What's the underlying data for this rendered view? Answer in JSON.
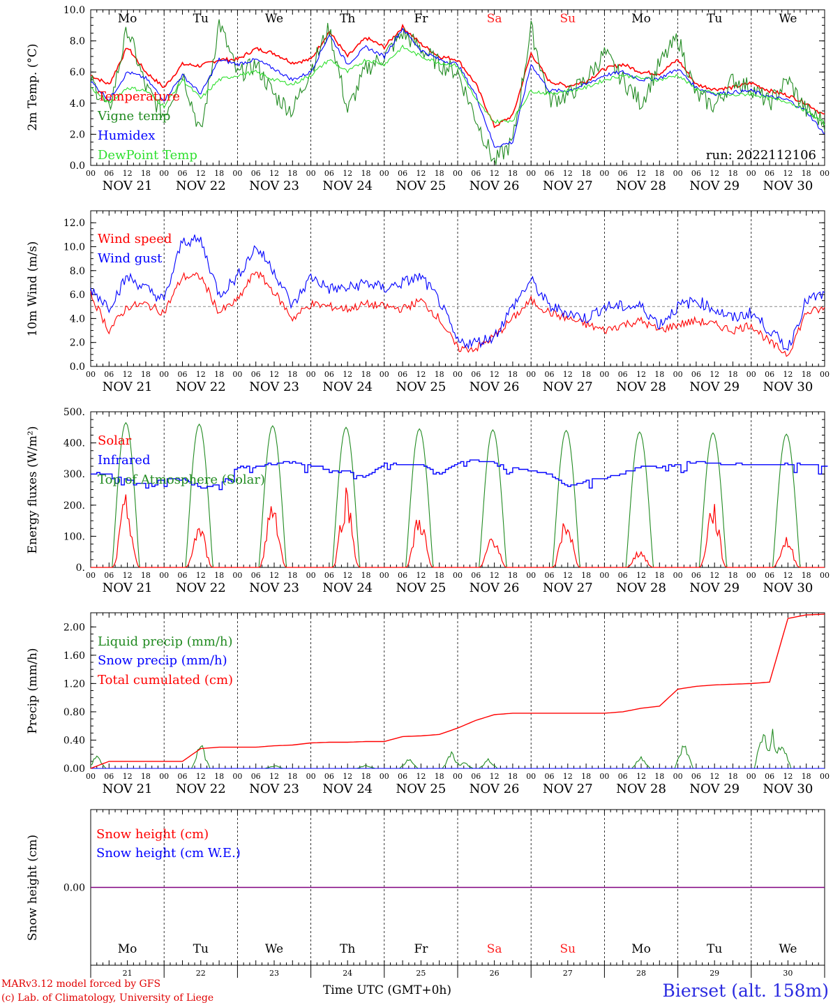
{
  "run_label": "run: 2022112106",
  "time_axis": {
    "hour_labels": [
      "00",
      "06",
      "12",
      "18"
    ],
    "end_hour_label": "00",
    "date_labels": [
      "NOV 21",
      "NOV 22",
      "NOV 23",
      "NOV 24",
      "NOV 25",
      "NOV 26",
      "NOV 27",
      "NOV 28",
      "NOV 29",
      "NOV 30"
    ],
    "weekday_labels": [
      "Mo",
      "Tu",
      "We",
      "Th",
      "Fr",
      "Sa",
      "Su",
      "Mo",
      "Tu",
      "We"
    ],
    "weekend_color": "#ff2020",
    "weekday_color": "#000000",
    "day_numbers": [
      "21",
      "22",
      "23",
      "24",
      "25",
      "26",
      "27",
      "28",
      "29",
      "30"
    ],
    "xlabel": "Time UTC (GMT+0h)"
  },
  "footer": {
    "credit_line1": "MARv3.12 model forced by GFS",
    "credit_line2": "(c) Lab. of Climatology, University of Liege",
    "station": "Bierset (alt. 158m)"
  },
  "chart_data": [
    {
      "type": "line",
      "ylabel": "2m Temp. (°C)",
      "ylim": [
        0,
        10
      ],
      "yticks": [
        "0.0",
        "2.0",
        "4.0",
        "6.0",
        "8.0",
        "10.0"
      ],
      "hours": [
        0,
        6,
        12,
        18,
        24,
        30,
        36,
        42,
        48,
        54,
        60,
        66,
        72,
        78,
        84,
        90,
        96,
        102,
        108,
        114,
        120,
        126,
        132,
        138,
        144,
        150,
        156,
        162,
        168,
        174,
        180,
        186,
        192,
        198,
        204,
        210,
        216,
        222,
        228,
        234,
        240
      ],
      "series": [
        {
          "name": "Temperature",
          "color": "#ff0000",
          "values": [
            5.8,
            5.2,
            7.6,
            6.0,
            5.0,
            6.5,
            6.4,
            6.8,
            6.8,
            7.5,
            7.2,
            6.6,
            6.8,
            8.6,
            7.0,
            8.2,
            7.6,
            8.9,
            7.8,
            7.0,
            6.8,
            5.2,
            2.5,
            3.2,
            7.2,
            5.4,
            5.1,
            5.4,
            6.2,
            6.5,
            6.0,
            5.9,
            6.8,
            5.2,
            4.9,
            5.0,
            5.3,
            4.8,
            4.5,
            4.0,
            3.2
          ]
        },
        {
          "name": "Vigne temp",
          "color": "#228b22",
          "values": [
            5.5,
            3.5,
            8.8,
            5.0,
            3.2,
            6.0,
            2.0,
            9.2,
            5.8,
            6.5,
            4.5,
            3.5,
            6.2,
            8.8,
            3.5,
            6.2,
            7.0,
            8.5,
            7.5,
            6.5,
            6.0,
            3.0,
            0.2,
            1.5,
            8.8,
            4.2,
            4.5,
            5.5,
            7.2,
            5.5,
            4.0,
            6.5,
            8.2,
            4.5,
            3.8,
            5.5,
            5.0,
            4.0,
            5.5,
            3.5,
            2.8
          ]
        },
        {
          "name": "Humidex",
          "color": "#0000ff",
          "values": [
            5.4,
            4.2,
            6.0,
            5.6,
            4.2,
            5.8,
            4.6,
            6.8,
            6.5,
            6.8,
            6.2,
            5.5,
            6.0,
            8.4,
            6.5,
            7.6,
            7.0,
            8.8,
            7.4,
            6.8,
            6.5,
            4.5,
            1.2,
            1.5,
            6.5,
            4.8,
            4.8,
            5.2,
            5.8,
            6.0,
            5.5,
            5.6,
            6.2,
            5.0,
            4.6,
            4.7,
            4.8,
            4.4,
            4.2,
            3.5,
            2.0
          ]
        },
        {
          "name": "DewPoint Temp",
          "color": "#2fe02f",
          "values": [
            5.0,
            4.0,
            5.0,
            4.8,
            3.8,
            5.5,
            4.3,
            5.5,
            5.8,
            6.0,
            5.5,
            5.2,
            5.8,
            6.8,
            6.0,
            6.8,
            6.5,
            7.6,
            7.0,
            6.6,
            6.4,
            4.2,
            2.8,
            2.9,
            4.8,
            4.6,
            4.8,
            5.0,
            5.5,
            5.8,
            5.6,
            5.5,
            5.8,
            4.9,
            4.6,
            4.5,
            4.6,
            4.3,
            4.1,
            3.5,
            2.7
          ]
        }
      ]
    },
    {
      "type": "line",
      "ylabel": "10m Wind (m/s)",
      "ylim": [
        0,
        13
      ],
      "yticks": [
        "0.0",
        "2.0",
        "4.0",
        "6.0",
        "8.0",
        "10.0",
        "12.0"
      ],
      "reference_line": 5,
      "hours": [
        0,
        6,
        12,
        18,
        24,
        30,
        36,
        42,
        48,
        54,
        60,
        66,
        72,
        78,
        84,
        90,
        96,
        102,
        108,
        114,
        120,
        126,
        132,
        138,
        144,
        150,
        156,
        162,
        168,
        174,
        180,
        186,
        192,
        198,
        204,
        210,
        216,
        222,
        228,
        234,
        240
      ],
      "series": [
        {
          "name": "Wind speed",
          "color": "#ff0000",
          "values": [
            6.0,
            3.0,
            5.0,
            5.2,
            4.5,
            7.5,
            7.5,
            4.5,
            5.5,
            8.0,
            6.2,
            4.0,
            5.2,
            5.0,
            4.8,
            5.2,
            5.0,
            4.8,
            5.5,
            4.0,
            1.5,
            1.5,
            2.5,
            4.0,
            5.5,
            4.5,
            4.0,
            3.5,
            3.0,
            3.5,
            3.8,
            3.0,
            3.5,
            3.8,
            3.5,
            3.0,
            3.5,
            2.0,
            1.0,
            4.5,
            4.8
          ]
        },
        {
          "name": "Wind gust",
          "color": "#0000ff",
          "values": [
            6.5,
            5.0,
            7.5,
            6.5,
            5.5,
            10.5,
            10.5,
            6.0,
            7.5,
            10.0,
            8.0,
            5.0,
            7.5,
            6.5,
            6.5,
            7.0,
            6.5,
            7.0,
            7.5,
            5.5,
            2.0,
            2.0,
            2.5,
            5.0,
            7.2,
            5.0,
            4.5,
            4.0,
            5.0,
            5.0,
            5.0,
            3.5,
            5.0,
            5.5,
            4.8,
            4.0,
            4.5,
            3.0,
            1.5,
            5.5,
            6.0
          ]
        }
      ]
    },
    {
      "type": "line",
      "ylabel": "Energy fluxes (W/m²)",
      "ylim": [
        0,
        500
      ],
      "yticks": [
        "0.",
        "100.",
        "200.",
        "300.",
        "400.",
        "500."
      ],
      "day_peaks": {
        "Solar": [
          235,
          150,
          245,
          270,
          190,
          120,
          175,
          60,
          225,
          105
        ],
        "Top of Atmosphere (Solar)": [
          465,
          460,
          455,
          450,
          445,
          442,
          440,
          435,
          432,
          428
        ]
      },
      "Infrared_hourly_6h": [
        300,
        300,
        280,
        265,
        285,
        285,
        255,
        270,
        320,
        325,
        335,
        335,
        330,
        310,
        305,
        290,
        335,
        330,
        330,
        300,
        340,
        345,
        335,
        320,
        310,
        300,
        260,
        280,
        285,
        305,
        325,
        325,
        330,
        340,
        335,
        330,
        330,
        330,
        330,
        330,
        325
      ],
      "series_names": [
        "Solar",
        "Infrared",
        "Top of Atmosphere (Solar)"
      ],
      "series_colors": [
        "#ff0000",
        "#0000ff",
        "#228b22"
      ]
    },
    {
      "type": "line",
      "ylabel": "Precip (mm/h)",
      "ylim": [
        0,
        2.2
      ],
      "yticks": [
        "0.00",
        "0.40",
        "0.80",
        "1.20",
        "1.60",
        "2.00"
      ],
      "series": [
        {
          "name": "Liquid precip (mm/h)",
          "color": "#228b22",
          "events": [
            [
              2,
              0.2
            ],
            [
              36,
              0.4
            ],
            [
              60,
              0.05
            ],
            [
              90,
              0.05
            ],
            [
              104,
              0.15
            ],
            [
              118,
              0.25
            ],
            [
              122,
              0.1
            ],
            [
              130,
              0.15
            ],
            [
              180,
              0.2
            ],
            [
              194,
              0.4
            ],
            [
              220,
              0.7
            ],
            [
              223,
              0.6
            ],
            [
              226,
              0.5
            ]
          ]
        },
        {
          "name": "Snow precip (mm/h)",
          "color": "#0000ff",
          "events": []
        },
        {
          "name": "Total cumulated (cm)",
          "color": "#ff0000",
          "hours": [
            0,
            6,
            12,
            18,
            24,
            30,
            36,
            42,
            48,
            54,
            60,
            66,
            72,
            78,
            84,
            90,
            96,
            102,
            108,
            114,
            120,
            126,
            132,
            138,
            144,
            150,
            156,
            162,
            168,
            174,
            180,
            186,
            192,
            198,
            204,
            210,
            216,
            222,
            228,
            234,
            240
          ],
          "values": [
            0,
            0.1,
            0.1,
            0.1,
            0.1,
            0.1,
            0.28,
            0.3,
            0.3,
            0.3,
            0.32,
            0.33,
            0.36,
            0.37,
            0.37,
            0.38,
            0.38,
            0.45,
            0.46,
            0.48,
            0.57,
            0.68,
            0.76,
            0.78,
            0.78,
            0.78,
            0.78,
            0.78,
            0.78,
            0.8,
            0.85,
            0.88,
            1.12,
            1.16,
            1.18,
            1.19,
            1.2,
            1.22,
            2.12,
            2.17,
            2.18
          ]
        }
      ]
    },
    {
      "type": "line",
      "ylabel": "Snow height (cm)",
      "ylim": [
        -1,
        1
      ],
      "yticks": [
        "0.00"
      ],
      "series": [
        {
          "name": "Snow height (cm)",
          "color": "#ff0000",
          "values": [
            0,
            0
          ]
        },
        {
          "name": "Snow height (cm W.E.)",
          "color": "#0000ff",
          "values": [
            0,
            0
          ]
        }
      ]
    }
  ]
}
